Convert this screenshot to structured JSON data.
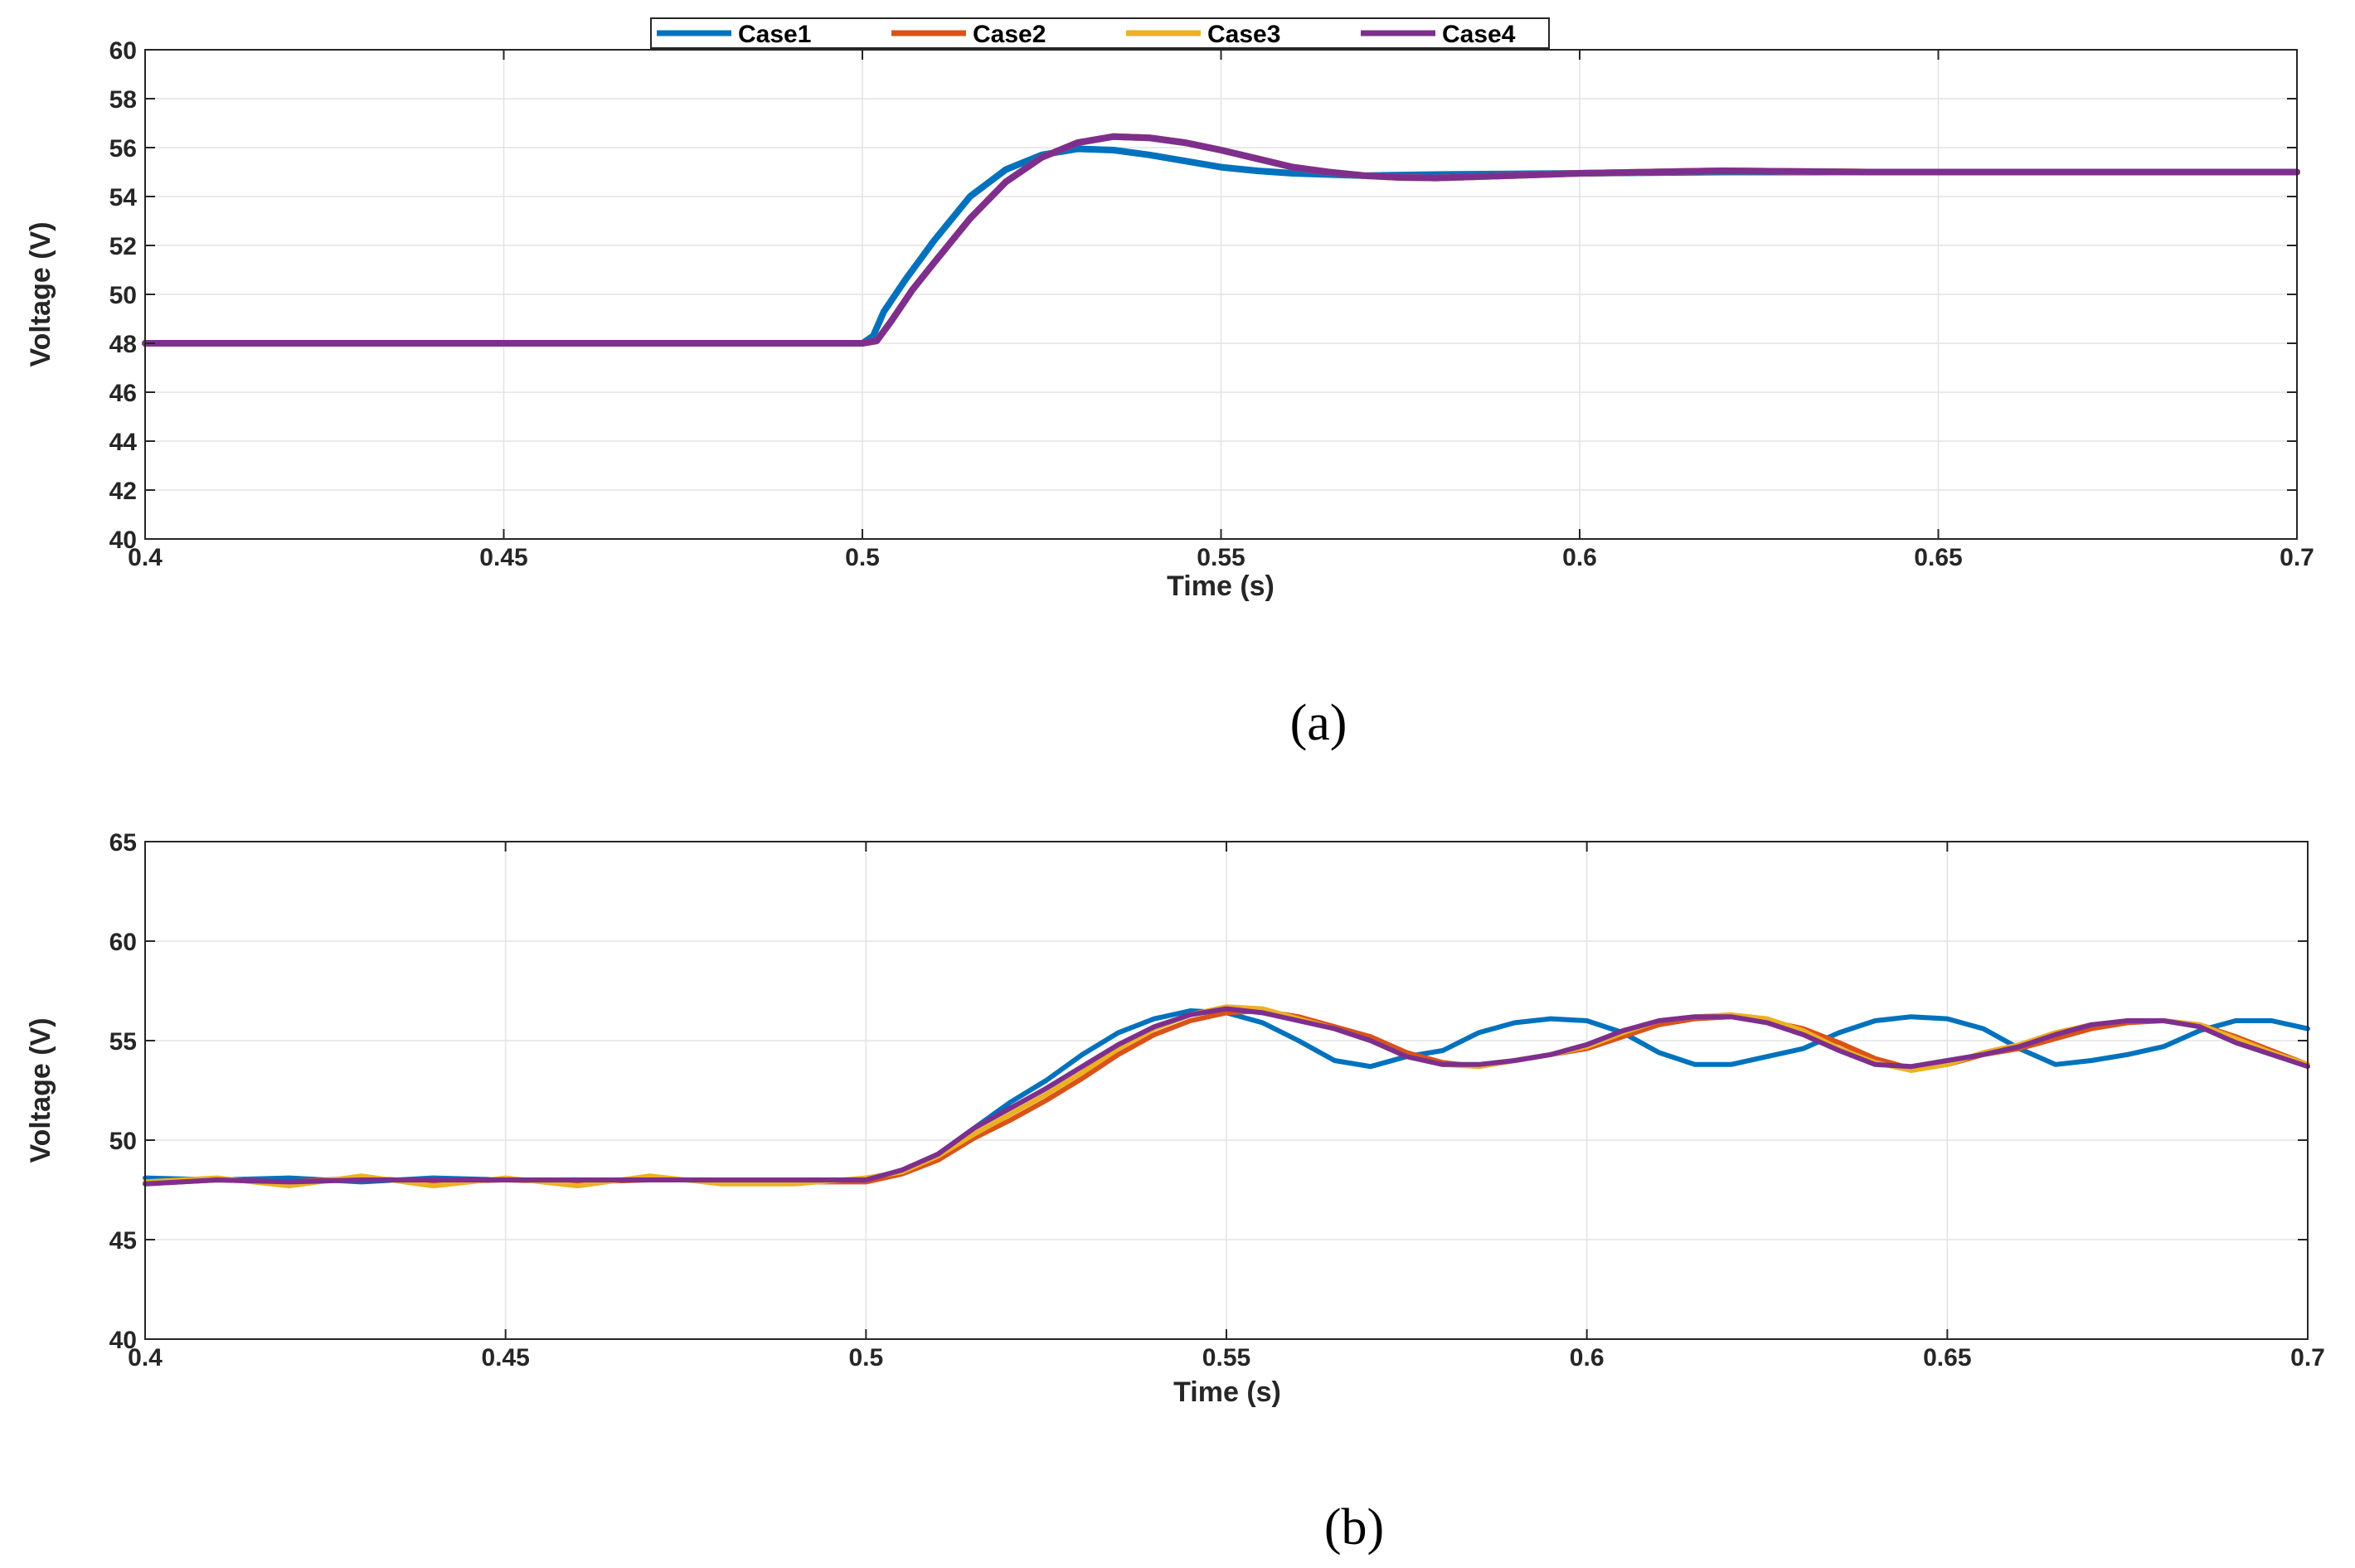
{
  "colors": {
    "Case1": "#0072BD",
    "Case2": "#D95319",
    "Case3": "#EDB120",
    "Case4": "#7E2F8E",
    "grid": "#e3e3e3",
    "axis": "#262626"
  },
  "legend": {
    "entries": [
      "Case1",
      "Case2",
      "Case3",
      "Case4"
    ]
  },
  "chart_data": [
    {
      "type": "line",
      "caption": "(a)",
      "xlabel": "Time (s)",
      "ylabel": "Voltage (V)",
      "xlim": [
        0.4,
        0.7
      ],
      "ylim": [
        40,
        60
      ],
      "xticks": [
        0.4,
        0.45,
        0.5,
        0.55,
        0.6,
        0.65,
        0.7
      ],
      "xtick_labels": [
        "0.4",
        "0.45",
        "0.5",
        "0.55",
        "0.6",
        "0.65",
        "0.7"
      ],
      "yticks": [
        40,
        42,
        44,
        46,
        48,
        50,
        52,
        54,
        56,
        58,
        60
      ],
      "ytick_labels": [
        "40",
        "42",
        "44",
        "46",
        "48",
        "50",
        "52",
        "54",
        "56",
        "58",
        "60"
      ],
      "grid": true,
      "legend_position": "top-center",
      "series": [
        {
          "name": "Case1",
          "x": [
            0.4,
            0.45,
            0.5,
            0.5015,
            0.503,
            0.506,
            0.51,
            0.515,
            0.52,
            0.525,
            0.53,
            0.535,
            0.54,
            0.545,
            0.55,
            0.555,
            0.56,
            0.57,
            0.58,
            0.6,
            0.62,
            0.64,
            0.66,
            0.68,
            0.7
          ],
          "y": [
            48,
            48,
            48,
            48.3,
            49.3,
            50.6,
            52.2,
            54.0,
            55.1,
            55.7,
            55.95,
            55.9,
            55.7,
            55.45,
            55.2,
            55.05,
            54.95,
            54.85,
            54.9,
            54.95,
            55.0,
            55.0,
            55.0,
            55.0,
            55.0
          ]
        },
        {
          "name": "Case2",
          "x": [
            0.4,
            0.45,
            0.5,
            0.502,
            0.504,
            0.507,
            0.51,
            0.515,
            0.52,
            0.525,
            0.53,
            0.535,
            0.54,
            0.545,
            0.55,
            0.555,
            0.56,
            0.565,
            0.57,
            0.575,
            0.58,
            0.59,
            0.6,
            0.62,
            0.64,
            0.66,
            0.68,
            0.7
          ],
          "y": [
            48,
            48,
            48,
            48.1,
            48.9,
            50.2,
            51.3,
            53.1,
            54.6,
            55.6,
            56.2,
            56.45,
            56.4,
            56.2,
            55.9,
            55.55,
            55.2,
            55.0,
            54.85,
            54.78,
            54.76,
            54.85,
            54.95,
            55.05,
            55.0,
            55.0,
            55.0,
            55.0
          ]
        },
        {
          "name": "Case3",
          "x": [
            0.4,
            0.45,
            0.5,
            0.502,
            0.504,
            0.507,
            0.51,
            0.515,
            0.52,
            0.525,
            0.53,
            0.535,
            0.54,
            0.545,
            0.55,
            0.555,
            0.56,
            0.565,
            0.57,
            0.575,
            0.58,
            0.59,
            0.6,
            0.62,
            0.64,
            0.66,
            0.68,
            0.7
          ],
          "y": [
            48,
            48,
            48,
            48.1,
            48.9,
            50.2,
            51.3,
            53.1,
            54.6,
            55.6,
            56.2,
            56.45,
            56.4,
            56.2,
            55.9,
            55.55,
            55.2,
            55.0,
            54.85,
            54.78,
            54.76,
            54.85,
            54.95,
            55.05,
            55.0,
            55.0,
            55.0,
            55.0
          ]
        },
        {
          "name": "Case4",
          "x": [
            0.4,
            0.45,
            0.5,
            0.502,
            0.504,
            0.507,
            0.51,
            0.515,
            0.52,
            0.525,
            0.53,
            0.535,
            0.54,
            0.545,
            0.55,
            0.555,
            0.56,
            0.565,
            0.57,
            0.575,
            0.58,
            0.59,
            0.6,
            0.62,
            0.64,
            0.66,
            0.68,
            0.7
          ],
          "y": [
            48,
            48,
            48,
            48.1,
            48.9,
            50.2,
            51.3,
            53.1,
            54.6,
            55.6,
            56.2,
            56.45,
            56.4,
            56.2,
            55.9,
            55.55,
            55.2,
            55.0,
            54.85,
            54.78,
            54.76,
            54.85,
            54.95,
            55.05,
            55.0,
            55.0,
            55.0,
            55.0
          ]
        }
      ]
    },
    {
      "type": "line",
      "caption": "(b)",
      "xlabel": "Time (s)",
      "ylabel": "Voltage (V)",
      "xlim": [
        0.4,
        0.7
      ],
      "ylim": [
        40,
        65
      ],
      "xticks": [
        0.4,
        0.45,
        0.5,
        0.55,
        0.6,
        0.65,
        0.7
      ],
      "xtick_labels": [
        "0.4",
        "0.45",
        "0.5",
        "0.55",
        "0.6",
        "0.65",
        "0.7"
      ],
      "yticks": [
        40,
        45,
        50,
        55,
        60,
        65
      ],
      "ytick_labels": [
        "40",
        "45",
        "50",
        "55",
        "60",
        "65"
      ],
      "grid": true,
      "series": [
        {
          "name": "Case1",
          "x": [
            0.4,
            0.41,
            0.42,
            0.43,
            0.44,
            0.45,
            0.46,
            0.47,
            0.48,
            0.49,
            0.5,
            0.505,
            0.51,
            0.515,
            0.52,
            0.525,
            0.53,
            0.535,
            0.54,
            0.545,
            0.55,
            0.555,
            0.56,
            0.565,
            0.57,
            0.575,
            0.58,
            0.585,
            0.59,
            0.595,
            0.6,
            0.605,
            0.61,
            0.615,
            0.62,
            0.625,
            0.63,
            0.635,
            0.64,
            0.645,
            0.65,
            0.655,
            0.66,
            0.665,
            0.67,
            0.675,
            0.68,
            0.685,
            0.69,
            0.695,
            0.7
          ],
          "y": [
            48.1,
            48.0,
            48.1,
            47.9,
            48.1,
            48.0,
            48.0,
            48.0,
            48.0,
            48.0,
            48.0,
            48.4,
            49.3,
            50.6,
            51.9,
            53.0,
            54.3,
            55.4,
            56.1,
            56.5,
            56.4,
            55.9,
            55.0,
            54.0,
            53.7,
            54.2,
            54.5,
            55.4,
            55.9,
            56.1,
            56.0,
            55.4,
            54.4,
            53.8,
            53.8,
            54.2,
            54.6,
            55.4,
            56.0,
            56.2,
            56.1,
            55.6,
            54.6,
            53.8,
            54.0,
            54.3,
            54.7,
            55.5,
            56.0,
            56.0,
            55.6
          ]
        },
        {
          "name": "Case2",
          "x": [
            0.4,
            0.41,
            0.42,
            0.43,
            0.44,
            0.45,
            0.46,
            0.47,
            0.48,
            0.49,
            0.5,
            0.505,
            0.51,
            0.515,
            0.52,
            0.525,
            0.53,
            0.535,
            0.54,
            0.545,
            0.55,
            0.555,
            0.56,
            0.565,
            0.57,
            0.575,
            0.58,
            0.585,
            0.59,
            0.595,
            0.6,
            0.605,
            0.61,
            0.615,
            0.62,
            0.625,
            0.63,
            0.635,
            0.64,
            0.645,
            0.65,
            0.655,
            0.66,
            0.665,
            0.67,
            0.675,
            0.68,
            0.685,
            0.69,
            0.695,
            0.7
          ],
          "y": [
            47.8,
            48.0,
            47.9,
            48.1,
            47.9,
            48.0,
            47.9,
            48.0,
            48.0,
            47.9,
            47.9,
            48.3,
            49.0,
            50.1,
            51.0,
            52.0,
            53.1,
            54.3,
            55.3,
            56.0,
            56.4,
            56.5,
            56.2,
            55.7,
            55.2,
            54.4,
            53.9,
            53.7,
            54.0,
            54.3,
            54.6,
            55.2,
            55.8,
            56.1,
            56.2,
            56.0,
            55.6,
            54.9,
            54.1,
            53.6,
            53.8,
            54.3,
            54.6,
            55.1,
            55.6,
            55.9,
            56.0,
            55.8,
            55.2,
            54.5,
            53.8
          ]
        },
        {
          "name": "Case3",
          "x": [
            0.4,
            0.41,
            0.42,
            0.43,
            0.44,
            0.45,
            0.46,
            0.47,
            0.48,
            0.49,
            0.5,
            0.505,
            0.51,
            0.515,
            0.52,
            0.525,
            0.53,
            0.535,
            0.54,
            0.545,
            0.55,
            0.555,
            0.56,
            0.565,
            0.57,
            0.575,
            0.58,
            0.585,
            0.59,
            0.595,
            0.6,
            0.605,
            0.61,
            0.615,
            0.62,
            0.625,
            0.63,
            0.635,
            0.64,
            0.645,
            0.65,
            0.655,
            0.66,
            0.665,
            0.67,
            0.675,
            0.68,
            0.685,
            0.69,
            0.695,
            0.7
          ],
          "y": [
            47.9,
            48.1,
            47.7,
            48.2,
            47.7,
            48.1,
            47.7,
            48.2,
            47.8,
            47.8,
            48.1,
            48.4,
            49.2,
            50.3,
            51.3,
            52.3,
            53.4,
            54.6,
            55.6,
            56.3,
            56.7,
            56.6,
            56.1,
            55.6,
            55.0,
            54.2,
            53.8,
            53.7,
            54.0,
            54.3,
            54.7,
            55.4,
            56.0,
            56.2,
            56.3,
            56.1,
            55.5,
            54.6,
            53.9,
            53.5,
            53.8,
            54.4,
            54.8,
            55.4,
            55.8,
            56.0,
            56.0,
            55.8,
            55.1,
            54.4,
            53.8
          ]
        },
        {
          "name": "Case4",
          "x": [
            0.4,
            0.41,
            0.42,
            0.43,
            0.44,
            0.45,
            0.46,
            0.47,
            0.48,
            0.49,
            0.5,
            0.505,
            0.51,
            0.515,
            0.52,
            0.525,
            0.53,
            0.535,
            0.54,
            0.545,
            0.55,
            0.555,
            0.56,
            0.565,
            0.57,
            0.575,
            0.58,
            0.585,
            0.59,
            0.595,
            0.6,
            0.605,
            0.61,
            0.615,
            0.62,
            0.625,
            0.63,
            0.635,
            0.64,
            0.645,
            0.65,
            0.655,
            0.66,
            0.665,
            0.67,
            0.675,
            0.68,
            0.685,
            0.69,
            0.695,
            0.7
          ],
          "y": [
            47.8,
            48.0,
            47.9,
            48.0,
            48.0,
            48.0,
            48.0,
            48.0,
            48.0,
            48.0,
            48.0,
            48.5,
            49.3,
            50.6,
            51.6,
            52.6,
            53.7,
            54.8,
            55.7,
            56.3,
            56.6,
            56.4,
            56.0,
            55.6,
            55.0,
            54.2,
            53.8,
            53.8,
            54.0,
            54.3,
            54.8,
            55.5,
            56.0,
            56.2,
            56.2,
            55.9,
            55.3,
            54.5,
            53.8,
            53.7,
            54.0,
            54.3,
            54.7,
            55.3,
            55.8,
            56.0,
            56.0,
            55.7,
            54.9,
            54.3,
            53.7
          ]
        }
      ]
    }
  ]
}
